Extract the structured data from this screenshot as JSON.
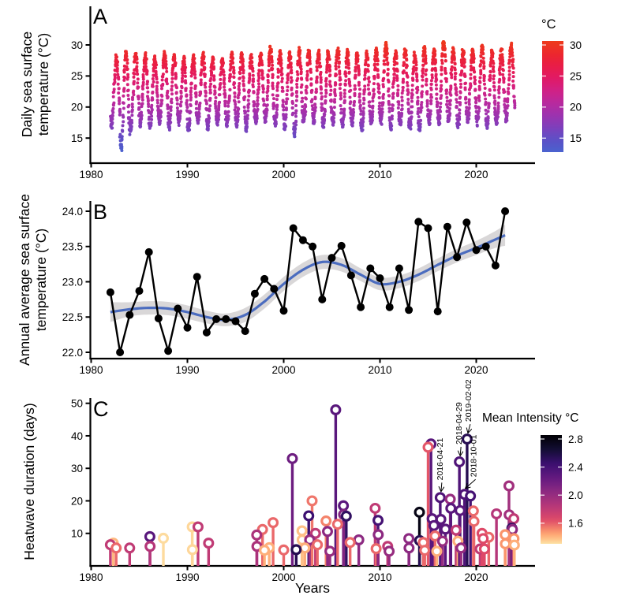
{
  "labels": {
    "panelA": "A",
    "panelB": "B",
    "panelC": "C"
  },
  "chart_data": [
    {
      "panel": "A",
      "type": "scatter",
      "ylabel": "Daily sea surface\ntemperature (°C)",
      "x_ticks": [
        1980,
        1990,
        2000,
        2010,
        2020
      ],
      "y_ticks": [
        15,
        20,
        25,
        30
      ],
      "x_range": [
        1980,
        2025.5
      ],
      "y_range": [
        12.9,
        30.5
      ],
      "seasonal_series": {
        "years": [
          1982,
          1983,
          1984,
          1985,
          1986,
          1987,
          1988,
          1989,
          1990,
          1991,
          1992,
          1993,
          1994,
          1995,
          1996,
          1997,
          1998,
          1999,
          2000,
          2001,
          2002,
          2003,
          2004,
          2005,
          2006,
          2007,
          2008,
          2009,
          2010,
          2011,
          2012,
          2013,
          2014,
          2015,
          2016,
          2017,
          2018,
          2019,
          2020,
          2021,
          2022,
          2023
        ],
        "winter_min": [
          17.0,
          13.4,
          16.6,
          17.4,
          16.8,
          17.8,
          16.9,
          17.5,
          16.4,
          17.8,
          16.8,
          17.5,
          17.2,
          17.3,
          16.6,
          17.9,
          18.0,
          17.2,
          16.8,
          15.6,
          18.2,
          17.8,
          17.0,
          17.6,
          17.2,
          17.4,
          16.5,
          17.5,
          17.8,
          16.9,
          17.3,
          16.8,
          16.4,
          17.8,
          17.6,
          18.0,
          17.0,
          17.9,
          17.5,
          17.0,
          17.6,
          18.2
        ],
        "summer_peak": [
          27.8,
          28.8,
          28.4,
          28.2,
          27.6,
          28.6,
          28.2,
          27.6,
          27.9,
          28.3,
          27.5,
          27.4,
          28.5,
          28.3,
          28.0,
          28.3,
          29.4,
          28.6,
          28.4,
          29.0,
          28.7,
          28.9,
          28.6,
          29.3,
          28.8,
          28.3,
          28.5,
          28.9,
          30.0,
          28.5,
          28.9,
          28.3,
          29.3,
          29.0,
          30.4,
          29.2,
          28.8,
          29.1,
          29.6,
          28.7,
          28.9,
          29.9
        ],
        "points_per_year": 80
      },
      "color_scale": {
        "title": "°C",
        "ticks": [
          "30",
          "25",
          "20",
          "15"
        ],
        "domain": [
          12.75,
          30.64
        ],
        "stops": [
          [
            12.7,
            "#4a63cf"
          ],
          [
            14.5,
            "#5952c7"
          ],
          [
            16.5,
            "#7a41bd"
          ],
          [
            18.5,
            "#9a33b0"
          ],
          [
            20.5,
            "#b62aa0"
          ],
          [
            22.5,
            "#cf2287"
          ],
          [
            24.5,
            "#e01a68"
          ],
          [
            26.5,
            "#e81c49"
          ],
          [
            28.5,
            "#ec272e"
          ],
          [
            30.6,
            "#ee3a1a"
          ]
        ]
      }
    },
    {
      "panel": "B",
      "type": "line",
      "ylabel": "Annual average sea surface\ntemperature (°C)",
      "x_ticks": [
        1980,
        1990,
        2000,
        2010,
        2020
      ],
      "y_ticks": [
        22.0,
        22.5,
        23.0,
        23.5,
        24.0
      ],
      "y_tick_labels": [
        "22.0",
        "22.5",
        "23.0",
        "23.5",
        "24.0"
      ],
      "years": [
        1982,
        1983,
        1984,
        1985,
        1986,
        1987,
        1988,
        1989,
        1990,
        1991,
        1992,
        1993,
        1994,
        1995,
        1996,
        1997,
        1998,
        1999,
        2000,
        2001,
        2002,
        2003,
        2004,
        2005,
        2006,
        2007,
        2008,
        2009,
        2010,
        2011,
        2012,
        2013,
        2014,
        2015,
        2016,
        2017,
        2018,
        2019,
        2020,
        2021,
        2022,
        2023
      ],
      "values": [
        22.85,
        22.0,
        22.53,
        22.87,
        23.42,
        22.48,
        22.02,
        22.62,
        22.35,
        23.07,
        22.28,
        22.47,
        22.47,
        22.44,
        22.3,
        22.83,
        23.04,
        22.9,
        22.59,
        23.76,
        23.59,
        23.5,
        22.75,
        23.34,
        23.51,
        23.09,
        22.64,
        23.19,
        23.05,
        22.64,
        23.19,
        22.6,
        23.85,
        23.76,
        22.58,
        23.78,
        23.35,
        23.84,
        23.45,
        23.5,
        23.23,
        24.0
      ],
      "smooth": {
        "years": [
          1982,
          1984,
          1986,
          1988,
          1990,
          1992,
          1994,
          1996,
          1998,
          2000,
          2002,
          2004,
          2006,
          2008,
          2010,
          2012,
          2014,
          2016,
          2018,
          2020,
          2022,
          2023
        ],
        "fit": [
          22.57,
          22.61,
          22.63,
          22.62,
          22.57,
          22.5,
          22.46,
          22.53,
          22.72,
          22.97,
          23.17,
          23.28,
          23.24,
          23.1,
          22.97,
          23.0,
          23.1,
          23.24,
          23.37,
          23.48,
          23.6,
          23.66
        ],
        "half_width": [
          0.14,
          0.1,
          0.095,
          0.095,
          0.095,
          0.09,
          0.09,
          0.1,
          0.1,
          0.1,
          0.1,
          0.1,
          0.095,
          0.09,
          0.09,
          0.09,
          0.09,
          0.09,
          0.095,
          0.1,
          0.12,
          0.15
        ]
      },
      "point_color": "#000000",
      "line_color": "#000000",
      "smooth_color": "#4b6cbf",
      "band_color": "#d9d7d8"
    },
    {
      "panel": "C",
      "type": "lollipop",
      "ylabel": "Heatwave duration (days)",
      "xlabel": "Years",
      "x_ticks": [
        1980,
        1990,
        2000,
        2010,
        2020
      ],
      "y_ticks": [
        10,
        20,
        30,
        40,
        50
      ],
      "events": [
        [
          1982.0,
          6.5,
          1.8
        ],
        [
          1982.3,
          7.0,
          1.4
        ],
        [
          1982.6,
          5.5,
          1.58
        ],
        [
          1984.0,
          5.5,
          1.8
        ],
        [
          1986.1,
          9.0,
          2.3
        ],
        [
          1986.12,
          6.0,
          1.85
        ],
        [
          1987.5,
          8.5,
          1.32
        ],
        [
          1990.5,
          12.0,
          1.33
        ],
        [
          1990.52,
          5.0,
          1.33
        ],
        [
          1991.1,
          12.0,
          1.8
        ],
        [
          1992.2,
          7.0,
          1.8
        ],
        [
          1997.2,
          9.5,
          1.9
        ],
        [
          1997.22,
          6.0,
          1.9
        ],
        [
          1997.8,
          11.2,
          1.58
        ],
        [
          1998.0,
          4.8,
          1.42
        ],
        [
          1998.5,
          5.6,
          1.42
        ],
        [
          1998.9,
          13.3,
          1.58
        ],
        [
          2000.0,
          4.9,
          1.58
        ],
        [
          2000.9,
          33.0,
          2.2
        ],
        [
          2001.3,
          5.0,
          2.55
        ],
        [
          2001.9,
          10.8,
          1.38
        ],
        [
          2001.92,
          8.0,
          1.38
        ],
        [
          2002.2,
          5.5,
          1.42
        ],
        [
          2002.6,
          15.4,
          2.45
        ],
        [
          2002.7,
          8.0,
          2.0
        ],
        [
          2002.95,
          20.0,
          1.55
        ],
        [
          2003.3,
          10.0,
          1.8
        ],
        [
          2003.5,
          6.5,
          1.58
        ],
        [
          2004.4,
          13.8,
          1.52
        ],
        [
          2004.55,
          10.6,
          2.05
        ],
        [
          2004.8,
          4.5,
          2.0
        ],
        [
          2005.4,
          48.0,
          2.3
        ],
        [
          2005.6,
          12.8,
          1.58
        ],
        [
          2006.2,
          18.5,
          2.3
        ],
        [
          2006.22,
          15.8,
          2.1
        ],
        [
          2006.5,
          15.3,
          2.5
        ],
        [
          2006.9,
          7.2,
          1.58
        ],
        [
          2007.8,
          8.0,
          2.05
        ],
        [
          2009.5,
          17.7,
          1.8
        ],
        [
          2009.6,
          5.3,
          1.58
        ],
        [
          2009.8,
          14.0,
          2.4
        ],
        [
          2009.82,
          9.6,
          2.05
        ],
        [
          2010.8,
          6.0,
          1.8
        ],
        [
          2010.95,
          4.5,
          2.0
        ],
        [
          2013.0,
          8.4,
          2.05
        ],
        [
          2013.02,
          5.5,
          2.05
        ],
        [
          2014.1,
          16.5,
          2.78
        ],
        [
          2014.12,
          7.8,
          2.55
        ],
        [
          2014.5,
          7.2,
          1.58
        ],
        [
          2014.65,
          4.8,
          1.58
        ],
        [
          2015.0,
          36.5,
          1.62
        ],
        [
          2015.3,
          37.5,
          2.3
        ],
        [
          2015.42,
          14.5,
          2.3
        ],
        [
          2015.6,
          12.4,
          2.3
        ],
        [
          2015.72,
          9.2,
          1.58
        ],
        [
          2015.9,
          4.5,
          1.42
        ],
        [
          2016.26,
          21.0,
          2.35
        ],
        [
          2016.32,
          14.3,
          2.3
        ],
        [
          2016.5,
          7.6,
          2.0
        ],
        [
          2016.8,
          11.3,
          2.3
        ],
        [
          2017.3,
          20.5,
          2.0
        ],
        [
          2017.36,
          17.7,
          2.3
        ],
        [
          2017.9,
          11.0,
          1.8
        ],
        [
          2018.1,
          7.6,
          1.42
        ],
        [
          2018.25,
          32.0,
          2.35
        ],
        [
          2018.32,
          17.0,
          2.3
        ],
        [
          2018.42,
          5.5,
          2.0
        ],
        [
          2018.78,
          22.0,
          2.35
        ],
        [
          2019.05,
          39.0,
          2.55
        ],
        [
          2019.4,
          21.5,
          2.4
        ],
        [
          2019.7,
          16.9,
          1.58
        ],
        [
          2019.76,
          13.7,
          1.58
        ],
        [
          2020.4,
          5.2,
          1.8
        ],
        [
          2020.6,
          10.0,
          1.65
        ],
        [
          2020.72,
          8.4,
          1.65
        ],
        [
          2020.85,
          5.2,
          1.65
        ],
        [
          2021.3,
          8.8,
          1.58
        ],
        [
          2022.1,
          16.0,
          1.85
        ],
        [
          2023.0,
          9.6,
          1.48
        ],
        [
          2023.02,
          6.8,
          1.48
        ],
        [
          2023.4,
          24.6,
          1.95
        ],
        [
          2023.42,
          15.7,
          1.95
        ],
        [
          2023.7,
          11.6,
          2.5
        ],
        [
          2023.76,
          11.2,
          2.05
        ],
        [
          2023.9,
          14.5,
          1.8
        ],
        [
          2023.92,
          8.4,
          1.48
        ],
        [
          2023.96,
          6.4,
          1.42
        ]
      ],
      "annotations": [
        {
          "label": "2016-04-21",
          "year": 2016.26,
          "duration": 21.0,
          "text_dx": 1
        },
        {
          "label": "2018-04-29",
          "year": 2018.25,
          "duration": 32.0,
          "text_dx": 1
        },
        {
          "label": "2019-02-02",
          "year": 2019.05,
          "duration": 39.0,
          "text_dx": 3
        },
        {
          "label": "2018-10-01",
          "year": 2018.78,
          "duration": 22.0,
          "text_dx": 13
        }
      ],
      "color_scale": {
        "title": "Mean Intensity °C",
        "ticks": [
          "2.8",
          "2.4",
          "2.0",
          "1.6"
        ],
        "domain": [
          1.306,
          2.856
        ],
        "magma_stops": [
          [
            0,
            "#000004"
          ],
          [
            0.13,
            "#140e36"
          ],
          [
            0.25,
            "#3b0f70"
          ],
          [
            0.38,
            "#641a80"
          ],
          [
            0.5,
            "#8c2981"
          ],
          [
            0.63,
            "#b73779"
          ],
          [
            0.75,
            "#de4968"
          ],
          [
            0.87,
            "#fe9f6d"
          ],
          [
            0.94,
            "#fecf92"
          ],
          [
            1,
            "#fcfdbf"
          ]
        ]
      }
    }
  ]
}
